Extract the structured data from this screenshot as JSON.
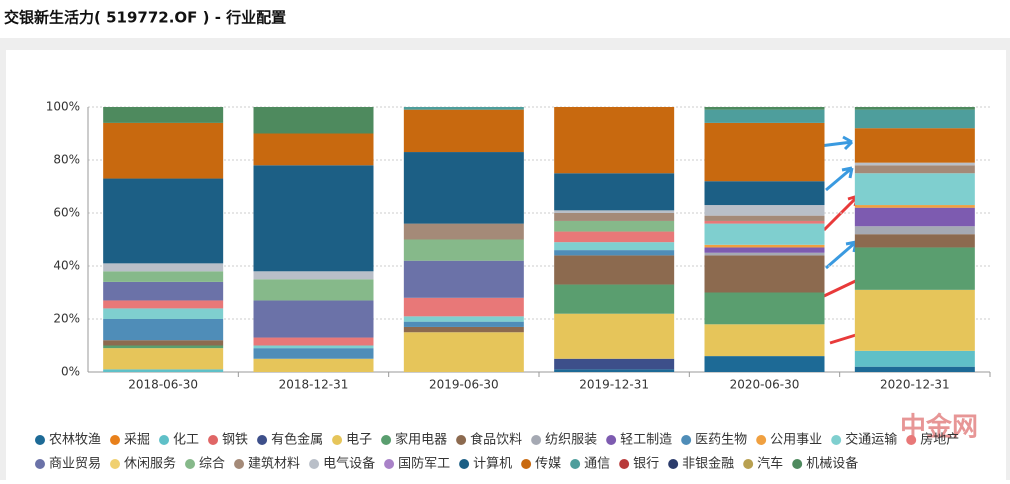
{
  "chart_data": {
    "type": "stacked_bar",
    "title": "交银新生活力( 519772.OF ) - 行业配置",
    "categories": [
      "2018-06-30",
      "2018-12-31",
      "2019-06-30",
      "2019-12-31",
      "2020-06-30",
      "2020-12-31"
    ],
    "ylim": [
      0,
      100
    ],
    "yticks": [
      {
        "value": 0,
        "label": "0%"
      },
      {
        "value": 20,
        "label": "20%"
      },
      {
        "value": 40,
        "label": "40%"
      },
      {
        "value": 60,
        "label": "60%"
      },
      {
        "value": 80,
        "label": "80%"
      },
      {
        "value": 100,
        "label": "100%"
      }
    ],
    "grid": true,
    "watermark": "中金网",
    "series": [
      {
        "name": "农林牧渔",
        "color": "#1d6a96",
        "values": [
          0,
          0,
          0,
          1,
          6,
          2
        ]
      },
      {
        "name": "采掘",
        "color": "#e8801b",
        "values": [
          0,
          0,
          0,
          0,
          0,
          0
        ]
      },
      {
        "name": "化工",
        "color": "#5fc0c8",
        "values": [
          1,
          0,
          0,
          0,
          0,
          6
        ]
      },
      {
        "name": "钢铁",
        "color": "#e06666",
        "values": [
          0,
          0,
          0,
          0,
          0,
          0
        ]
      },
      {
        "name": "有色金属",
        "color": "#3d4f8a",
        "values": [
          0,
          0,
          0,
          4,
          0,
          0
        ]
      },
      {
        "name": "电子",
        "color": "#e6c55a",
        "values": [
          8,
          5,
          15,
          17,
          12,
          23
        ]
      },
      {
        "name": "家用电器",
        "color": "#5a9e6f",
        "values": [
          1,
          0,
          0,
          11,
          12,
          16
        ]
      },
      {
        "name": "食品饮料",
        "color": "#8c6a4f",
        "values": [
          2,
          0,
          2,
          11,
          14,
          5
        ]
      },
      {
        "name": "纺织服装",
        "color": "#a5a9b3",
        "values": [
          0,
          0,
          0,
          0,
          1,
          3
        ]
      },
      {
        "name": "轻工制造",
        "color": "#7d5bb0",
        "values": [
          0,
          0,
          0,
          0,
          2,
          7
        ]
      },
      {
        "name": "医药生物",
        "color": "#4f8db8",
        "values": [
          8,
          4,
          2,
          2,
          0,
          0
        ]
      },
      {
        "name": "公用事业",
        "color": "#f0a040",
        "values": [
          0,
          0,
          0,
          0,
          1,
          1
        ]
      },
      {
        "name": "交通运输",
        "color": "#7fcfcf",
        "values": [
          4,
          1,
          2,
          3,
          8,
          12
        ]
      },
      {
        "name": "房地产",
        "color": "#e87878",
        "values": [
          3,
          3,
          7,
          4,
          1,
          0
        ]
      },
      {
        "name": "商业贸易",
        "color": "#6b72a8",
        "values": [
          7,
          14,
          14,
          0,
          0,
          0
        ]
      },
      {
        "name": "休闲服务",
        "color": "#f0d070",
        "values": [
          0,
          0,
          0,
          0,
          0,
          0
        ]
      },
      {
        "name": "综合",
        "color": "#86b98a",
        "values": [
          4,
          8,
          8,
          4,
          0,
          0
        ]
      },
      {
        "name": "建筑材料",
        "color": "#a48a78",
        "values": [
          0,
          0,
          6,
          3,
          2,
          3
        ]
      },
      {
        "name": "电气设备",
        "color": "#b9bfc8",
        "values": [
          3,
          3,
          0,
          1,
          4,
          1
        ]
      },
      {
        "name": "国防军工",
        "color": "#a982c8",
        "values": [
          0,
          0,
          0,
          0,
          0,
          0
        ]
      },
      {
        "name": "计算机",
        "color": "#1c5f85",
        "values": [
          32,
          40,
          27,
          14,
          9,
          0
        ]
      },
      {
        "name": "传媒",
        "color": "#c8690f",
        "values": [
          21,
          12,
          16,
          25,
          22,
          13
        ]
      },
      {
        "name": "通信",
        "color": "#4e9e9c",
        "values": [
          0,
          0,
          1,
          0,
          5,
          7
        ]
      },
      {
        "name": "银行",
        "color": "#b83b3b",
        "values": [
          0,
          0,
          0,
          0,
          0,
          0
        ]
      },
      {
        "name": "非银金融",
        "color": "#2b3b6b",
        "values": [
          0,
          0,
          0,
          0,
          0,
          0
        ]
      },
      {
        "name": "汽车",
        "color": "#b8a050",
        "values": [
          0,
          0,
          0,
          0,
          0,
          0
        ]
      },
      {
        "name": "机械设备",
        "color": "#4e8a5e",
        "values": [
          6,
          10,
          0,
          0,
          1,
          1
        ]
      }
    ]
  }
}
